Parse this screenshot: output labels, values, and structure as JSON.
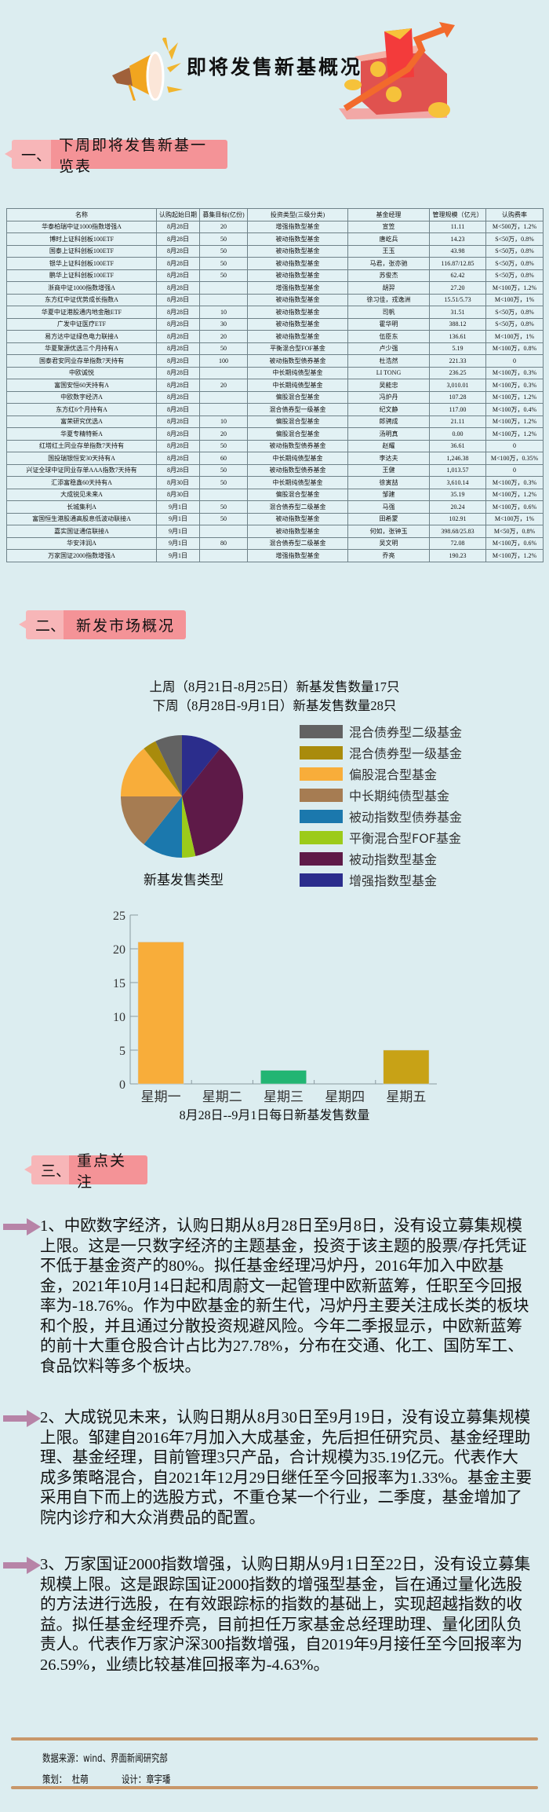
{
  "header": {
    "title": "即将发售新基概况"
  },
  "sections": [
    {
      "num": "一、",
      "label": "下周即将发售新基一览表"
    },
    {
      "num": "二、",
      "label": "新发市场概况"
    },
    {
      "num": "三、",
      "label": "重点关注"
    }
  ],
  "table": {
    "columns": [
      "名称",
      "认购起始日期",
      "募集目标(亿份)",
      "投资类型(三级分类)",
      "基金经理",
      "管理规模（亿元）",
      "认购费率"
    ],
    "rows": [
      [
        "华泰柏瑞中证1000指数增强A",
        "8月28日",
        "20",
        "增强指数型基金",
        "宣笠",
        "11.11",
        "M<500万，1.2%"
      ],
      [
        "博时上证科创板100ETF",
        "8月28日",
        "50",
        "被动指数型基金",
        "唐屹兵",
        "14.23",
        "S<50万，0.8%"
      ],
      [
        "国泰上证科创板100ETF",
        "8月28日",
        "50",
        "被动指数型基金",
        "王玉",
        "43.98",
        "S<50万，0.8%"
      ],
      [
        "银华上证科创板100ETF",
        "8月28日",
        "50",
        "被动指数型基金",
        "马君，张亦驰",
        "116.87/12.85",
        "S<50万，0.8%"
      ],
      [
        "鹏华上证科创板100ETF",
        "8月28日",
        "50",
        "被动指数型基金",
        "苏俊杰",
        "62.42",
        "S<50万，0.8%"
      ],
      [
        "浙商中证1000指数增强A",
        "8月28日",
        "",
        "增强指数型基金",
        "胡羿",
        "27.20",
        "M<100万，1.2%"
      ],
      [
        "东方红中证优势成长指数A",
        "8月28日",
        "",
        "被动指数型基金",
        "徐习佳，戎逸洲",
        "15.51/5.73",
        "M<100万，1%"
      ],
      [
        "华夏中证港股通内地金融ETF",
        "8月28日",
        "10",
        "被动指数型基金",
        "司帆",
        "31.51",
        "S<50万，0.8%"
      ],
      [
        "广发中证医疗ETF",
        "8月28日",
        "30",
        "被动指数型基金",
        "霍华明",
        "388.12",
        "S<50万，0.8%"
      ],
      [
        "易方达中证绿色电力联接A",
        "8月28日",
        "20",
        "被动指数型基金",
        "伍臣东",
        "136.61",
        "M<100万，1%"
      ],
      [
        "华夏聚源优选三个月持有A",
        "8月28日",
        "50",
        "平衡混合型FOF基金",
        "卢少强",
        "5.19",
        "M<100万，0.8%"
      ],
      [
        "国泰君安同业存单指数7天持有",
        "8月28日",
        "100",
        "被动指数型债券基金",
        "杜浩然",
        "221.33",
        "0"
      ],
      [
        "中欧诚悦",
        "8月28日",
        "",
        "中长期纯债型基金",
        "LI TONG",
        "236.25",
        "M<100万，0.3%"
      ],
      [
        "富国安恒60天持有A",
        "8月28日",
        "20",
        "中长期纯债型基金",
        "吴能忠",
        "3,010.01",
        "M<100万，0.3%"
      ],
      [
        "中欧数字经济A",
        "8月28日",
        "",
        "偏股混合型基金",
        "冯炉丹",
        "107.28",
        "M<100万，1.2%"
      ],
      [
        "东方红6个月持有A",
        "8月28日",
        "",
        "混合债券型一级基金",
        "纪文静",
        "117.00",
        "M<100万，0.4%"
      ],
      [
        "富荣研究优选A",
        "8月28日",
        "10",
        "偏股混合型基金",
        "郎骋成",
        "21.11",
        "M<100万，1.2%"
      ],
      [
        "华夏专精特新A",
        "8月28日",
        "20",
        "偏股混合型基金",
        "汤明真",
        "0.00",
        "M<100万，1.2%"
      ],
      [
        "红塔红土同业存单指数7天持有",
        "8月28日",
        "50",
        "被动指数型债券基金",
        "赵耀",
        "36.61",
        "0"
      ],
      [
        "国投瑞银恒安30天持有A",
        "8月28日",
        "60",
        "中长期纯债型基金",
        "李达夫",
        "1,246.38",
        "M<100万，0.35%"
      ],
      [
        "兴证全球中证同业存单AAA指数7天持有",
        "8月28日",
        "50",
        "被动指数型债券基金",
        "王健",
        "1,013.57",
        "0"
      ],
      [
        "汇添富稳鑫60天持有A",
        "8月30日",
        "50",
        "中长期纯债型基金",
        "徐寅喆",
        "3,610.14",
        "M<100万，0.3%"
      ],
      [
        "大成锐见未来A",
        "8月30日",
        "",
        "偏股混合型基金",
        "邹建",
        "35.19",
        "M<100万，1.2%"
      ],
      [
        "长城集利A",
        "9月1日",
        "50",
        "混合债券型二级基金",
        "马强",
        "20.24",
        "M<100万，0.6%"
      ],
      [
        "富国恒生港股通高股息低波动联接A",
        "9月1日",
        "50",
        "被动指数型基金",
        "田希蒙",
        "102.91",
        "M<100万，1%"
      ],
      [
        "嘉实国证通信联接A",
        "9月1日",
        "",
        "被动指数型基金",
        "何如，张钟玉",
        "398.68/25.83",
        "M<50万，0.8%"
      ],
      [
        "华安沣润A",
        "9月1日",
        "80",
        "混合债券型二级基金",
        "吴文明",
        "72.08",
        "M<100万，0.6%"
      ],
      [
        "万家国证2000指数增强A",
        "9月1日",
        "",
        "增强指数型基金",
        "乔亮",
        "190.23",
        "M<100万，1.2%"
      ]
    ]
  },
  "market": {
    "last_week": "上周（8月21日-8月25日）新基发售数量17只",
    "next_week": "下周（8月28日-9月1日）新基发售数量28只"
  },
  "chart_data": [
    {
      "type": "pie",
      "title": "新基发售类型",
      "legend_position": "right",
      "categories": [
        "混合债券型二级基金",
        "混合债券型一级基金",
        "偏股混合型基金",
        "中长期纯债型基金",
        "被动指数型债券基金",
        "平衡混合型FOF基金",
        "被动指数型基金",
        "增强指数型基金"
      ],
      "values": [
        2,
        1,
        4,
        4,
        3,
        1,
        10,
        3
      ],
      "colors": [
        "#626262",
        "#a98b0c",
        "#f8ad3a",
        "#a67c52",
        "#1b78ad",
        "#9ccb1a",
        "#5e1a48",
        "#2b2d8c"
      ]
    },
    {
      "type": "bar",
      "title": "8月28日--9月1日每日新基发售数量",
      "categories": [
        "星期一",
        "星期二",
        "星期三",
        "星期四",
        "星期五"
      ],
      "values": [
        21,
        0,
        2,
        0,
        5
      ],
      "colors": [
        "#f8ad3a",
        "#f8ad3a",
        "#22b573",
        "#22b573",
        "#c8a216"
      ],
      "ylim": [
        0,
        25
      ],
      "yticks": [
        0,
        5,
        10,
        15,
        20,
        25
      ],
      "grid": false
    }
  ],
  "focus": [
    "1、中欧数字经济，认购日期从8月28日至9月8日，没有设立募集规模上限。这是一只数字经济的主题基金，投资于该主题的股票/存托凭证不低于基金资产的80%。拟任基金经理冯炉丹，2016年加入中欧基金，2021年10月14日起和周蔚文一起管理中欧新蓝筹，任职至今回报率为-18.76%。作为中欧基金的新生代，冯炉丹主要关注成长类的板块和个股，并且通过分散投资规避风险。今年二季报显示，中欧新蓝筹的前十大重仓股合计占比为27.78%，分布在交通、化工、国防军工、食品饮料等多个板块。",
    "2、大成锐见未来，认购日期从8月30日至9月19日，没有设立募集规模上限。邹建自2016年7月加入大成基金，先后担任研究员、基金经理助理、基金经理，目前管理3只产品，合计规模为35.19亿元。代表作大成多策略混合，自2021年12月29日继任至今回报率为1.33%。基金主要采用自下而上的选股方式，不重仓某一个行业，二季度，基金增加了院内诊疗和大众消费品的配置。",
    "3、万家国证2000指数增强，认购日期从9月1日至22日，没有设立募集规模上限。这是跟踪国证2000指数的增强型基金，旨在通过量化选股的方法进行选股，在有效跟踪标的指数的基础上，实现超越指数的收益。拟任基金经理乔亮，目前担任万家基金总经理助理、量化团队负责人。代表作万家沪深300指数增强，自2019年9月接任至今回报率为26.59%，业绩比较基准回报率为-4.63%。"
  ],
  "footer": {
    "source": "数据来源：wind、界面新闻研究部",
    "planner": "策划：  杜萌",
    "designer": "设计：章宇璠"
  },
  "colors": {
    "background": "#dcedf0",
    "section_bg": "#f49397",
    "section_num_bg": "#f7b6b8",
    "arrow": "#b784a7",
    "footer_rule": "#c8976a"
  }
}
